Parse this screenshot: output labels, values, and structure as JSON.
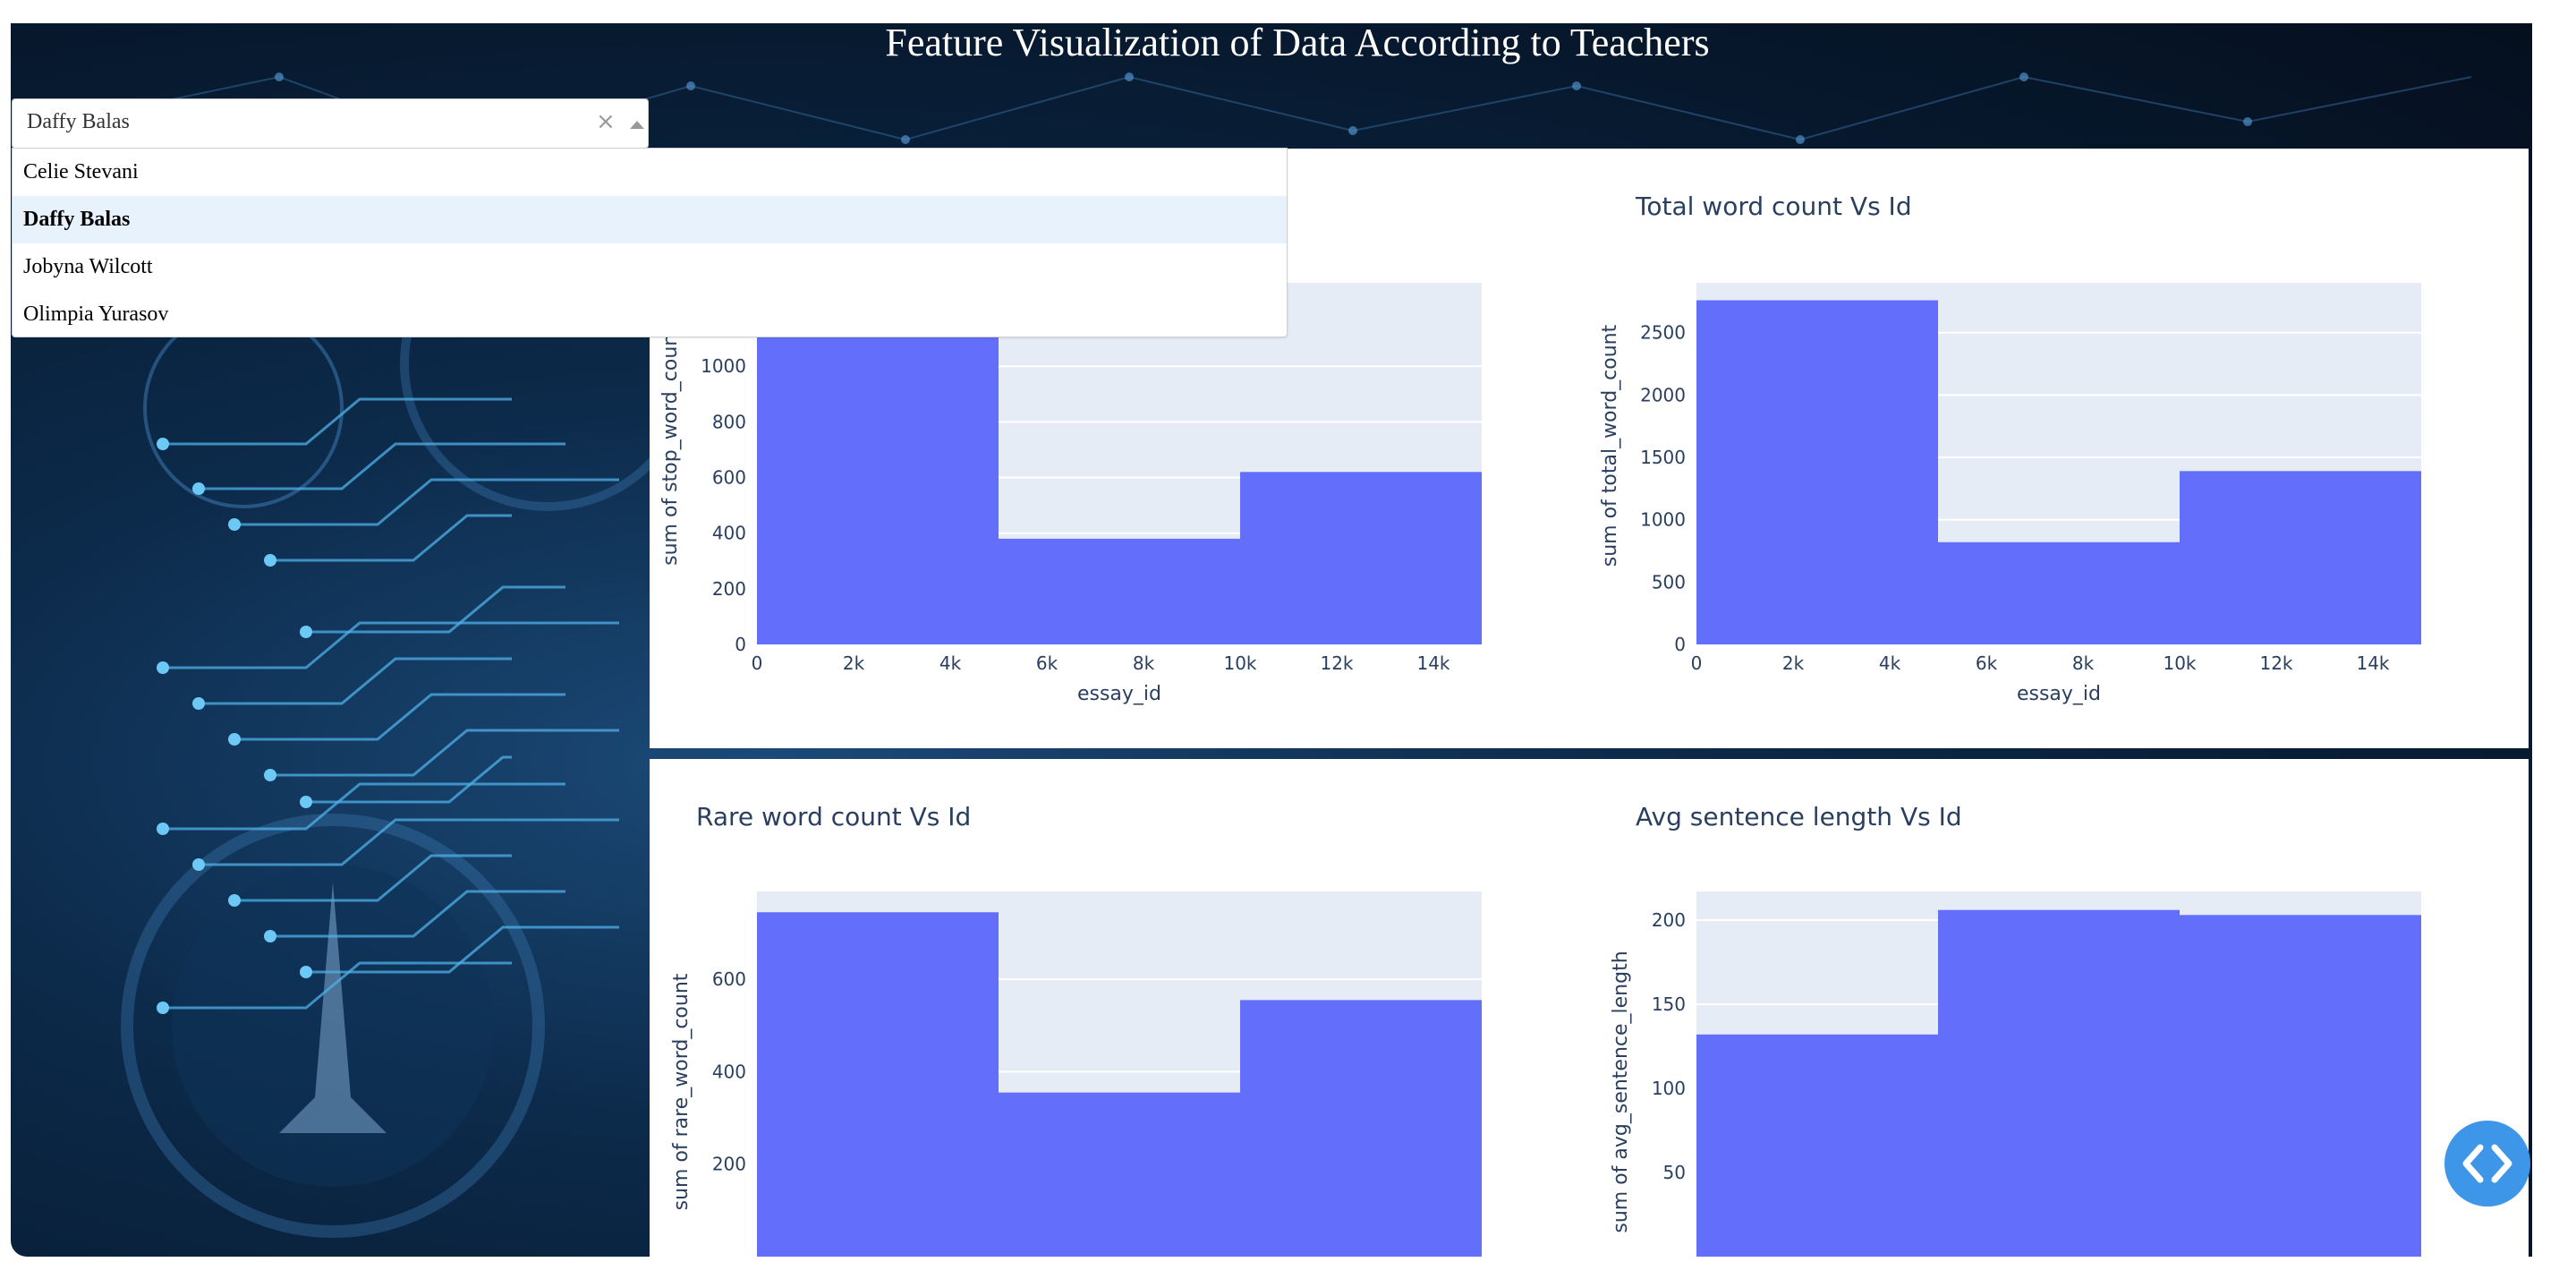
{
  "page": {
    "title": "Feature Visualization of Data According to Teachers"
  },
  "dropdown": {
    "value": "Daffy Balas",
    "clear_glyph": "×",
    "options": [
      "Celie Stevani",
      "Daffy Balas",
      "Jobyna Wilcott",
      "Olimpia Yurasov"
    ],
    "selected_index": 1
  },
  "fab": {
    "icon": "code-icon"
  },
  "colors": {
    "bar": "#636efa",
    "plot_bg": "#e5ecf6",
    "text": "#2a3f5f",
    "fab": "#3e96e8"
  },
  "chart_data": [
    {
      "type": "bar",
      "title": "",
      "xlabel": "essay_id",
      "ylabel": "sum of stop_word_count",
      "xlim": [
        0,
        15000
      ],
      "ylim": [
        0,
        1300
      ],
      "x_ticks": [
        "0",
        "2k",
        "4k",
        "6k",
        "8k",
        "10k",
        "12k",
        "14k"
      ],
      "y_ticks": [
        "0",
        "200",
        "400",
        "600",
        "800",
        "1000"
      ],
      "bins": [
        [
          0,
          5000
        ],
        [
          5000,
          10000
        ],
        [
          10000,
          15000
        ]
      ],
      "values": [
        1250,
        380,
        620
      ]
    },
    {
      "type": "bar",
      "title": "Total word count Vs Id",
      "xlabel": "essay_id",
      "ylabel": "sum of total_word_count",
      "xlim": [
        0,
        15000
      ],
      "ylim": [
        0,
        2900
      ],
      "x_ticks": [
        "0",
        "2k",
        "4k",
        "6k",
        "8k",
        "10k",
        "12k",
        "14k"
      ],
      "y_ticks": [
        "0",
        "500",
        "1000",
        "1500",
        "2000",
        "2500"
      ],
      "bins": [
        [
          0,
          5000
        ],
        [
          5000,
          10000
        ],
        [
          10000,
          15000
        ]
      ],
      "values": [
        2760,
        820,
        1390
      ]
    },
    {
      "type": "bar",
      "title": "Rare word count Vs Id",
      "xlabel": "",
      "ylabel": "sum of rare_word_count",
      "xlim": [
        0,
        15000
      ],
      "ylim": [
        0,
        790
      ],
      "y_ticks": [
        "200",
        "400",
        "600"
      ],
      "bins": [
        [
          0,
          5000
        ],
        [
          5000,
          10000
        ],
        [
          10000,
          15000
        ]
      ],
      "values": [
        745,
        355,
        555
      ]
    },
    {
      "type": "bar",
      "title": "Avg sentence length Vs Id",
      "xlabel": "",
      "ylabel": "sum of avg_sentence_length",
      "xlim": [
        0,
        15000
      ],
      "ylim": [
        0,
        217
      ],
      "y_ticks": [
        "50",
        "100",
        "150",
        "200"
      ],
      "bins": [
        [
          0,
          5000
        ],
        [
          5000,
          10000
        ],
        [
          10000,
          15000
        ]
      ],
      "values": [
        132,
        206,
        203
      ]
    }
  ]
}
